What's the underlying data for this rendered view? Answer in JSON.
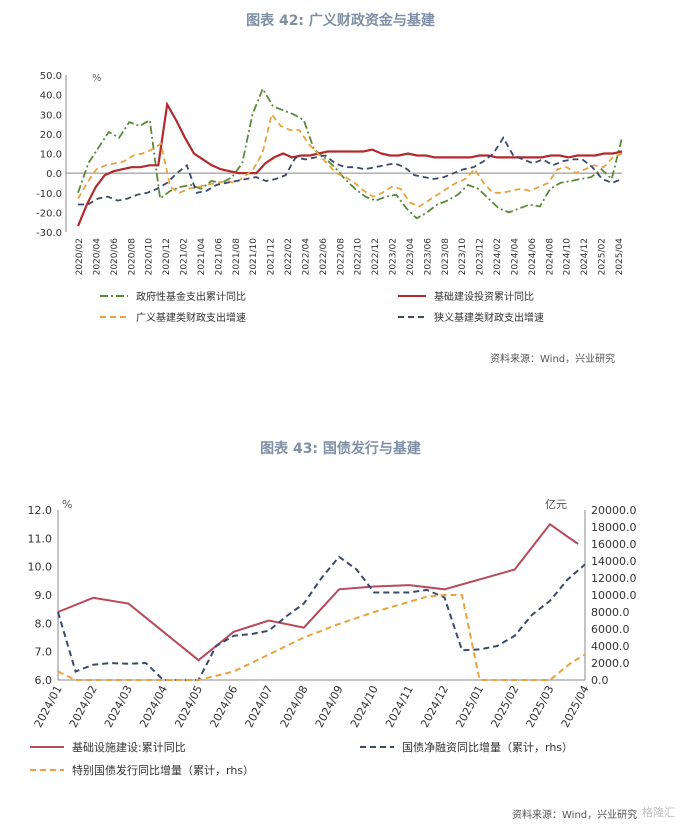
{
  "figures": [
    {
      "title": "图表 42: 广义财政资金与基建",
      "source": "资料来源：Wind，兴业研究"
    },
    {
      "title": "图表 43: 国债发行与基建",
      "source": "资料来源：Wind，兴业研究"
    }
  ],
  "watermark": "格隆汇",
  "chart_data": [
    {
      "type": "line",
      "title": "图表 42: 广义财政资金与基建",
      "ylabel": "%",
      "ylim": [
        -30,
        50
      ],
      "yticks": [
        "50.0",
        "40.0",
        "30.0",
        "20.0",
        "10.0",
        "0.0",
        "-10.0",
        "-20.0",
        "-30.0"
      ],
      "x_labels": [
        "2020/02",
        "2020/04",
        "2020/06",
        "2020/08",
        "2020/10",
        "2020/12",
        "2021/02",
        "2021/04",
        "2021/06",
        "2021/08",
        "2021/10",
        "2021/12",
        "2022/02",
        "2022/04",
        "2022/06",
        "2022/08",
        "2022/10",
        "2022/12",
        "2023/02",
        "2023/04",
        "2023/06",
        "2023/08",
        "2023/10",
        "2023/12",
        "2024/02",
        "2024/04",
        "2024/06",
        "2024/08",
        "2024/10",
        "2024/12",
        "2025/02",
        "2025/04"
      ],
      "legend_position": "bottom",
      "series": [
        {
          "name": "政府性基金支出累计同比",
          "color": "#5b8a3a",
          "dash": "dashdot",
          "values": [
            -10,
            5,
            13,
            21,
            18,
            26,
            24,
            27,
            -13,
            -9,
            -7,
            -6,
            -8,
            -4,
            -5,
            -2,
            5,
            30,
            43,
            34,
            32,
            30,
            27,
            12,
            8,
            3,
            -3,
            -8,
            -12,
            -14,
            -12,
            -11,
            -18,
            -23,
            -20,
            -16,
            -14,
            -11,
            -6,
            -8,
            -13,
            -18,
            -20,
            -18,
            -16,
            -17,
            -8,
            -5,
            -4,
            -3,
            -2,
            2,
            -3,
            18
          ]
        },
        {
          "name": "基础建设投资累计同比",
          "color": "#b22a2e",
          "dash": "solid",
          "values": [
            -27,
            -16,
            -7,
            -1,
            1,
            2,
            3,
            3,
            4,
            4,
            35,
            27,
            18,
            10,
            7,
            4,
            2,
            1,
            0,
            0,
            0,
            5,
            8,
            10,
            8,
            9,
            9,
            10,
            11,
            11,
            11,
            11,
            11,
            12,
            10,
            9,
            9,
            10,
            9,
            9,
            8,
            8,
            8,
            8,
            8,
            9,
            9,
            8,
            8,
            8,
            8,
            8,
            8,
            9,
            9,
            8,
            9,
            9,
            9,
            10,
            10,
            11
          ]
        },
        {
          "name": "广义基建类财政支出增速",
          "color": "#e8a33d",
          "dash": "dash",
          "values": [
            -13,
            -5,
            2,
            4,
            5,
            6,
            9,
            10,
            12,
            15,
            -7,
            -10,
            -8,
            -7,
            -6,
            -5,
            -4,
            -5,
            -2,
            2,
            10,
            30,
            24,
            22,
            22,
            15,
            10,
            5,
            0,
            -2,
            -5,
            -9,
            -12,
            -10,
            -7,
            -8,
            -15,
            -17,
            -14,
            -11,
            -8,
            -5,
            -3,
            2,
            -5,
            -10,
            -10,
            -9,
            -8,
            -9,
            -7,
            -5,
            2,
            3,
            0,
            2,
            4,
            3,
            8,
            10
          ]
        },
        {
          "name": "狭义基建类财政支出增速",
          "color": "#3a4a6b",
          "dash": "dash",
          "values": [
            -16,
            -16,
            -13,
            -12,
            -14,
            -13,
            -11,
            -10,
            -8,
            -5,
            0,
            4,
            -10,
            -9,
            -6,
            -5,
            -4,
            -3,
            -2,
            -4,
            -3,
            -1,
            8,
            7,
            8,
            9,
            5,
            3,
            3,
            2,
            3,
            4,
            5,
            3,
            -1,
            -2,
            -3,
            -2,
            0,
            2,
            3,
            6,
            10,
            18,
            9,
            7,
            5,
            7,
            4,
            6,
            7,
            7,
            3,
            -3,
            -5,
            -3
          ]
        }
      ]
    },
    {
      "type": "line",
      "title": "图表 43: 国债发行与基建",
      "ylabel": "%",
      "ylabel_right": "亿元",
      "ylim": [
        6.0,
        12.0
      ],
      "ylim_right": [
        0,
        20000
      ],
      "yticks": [
        "12.0",
        "11.0",
        "10.0",
        "9.0",
        "8.0",
        "7.0",
        "6.0"
      ],
      "yticks_right": [
        "20000.0",
        "18000.0",
        "16000.0",
        "14000.0",
        "12000.0",
        "10000.0",
        "8000.0",
        "6000.0",
        "4000.0",
        "2000.0",
        "0.0"
      ],
      "x_labels": [
        "2024/01",
        "2024/02",
        "2024/03",
        "2024/04",
        "2024/05",
        "2024/06",
        "2024/07",
        "2024/08",
        "2024/09",
        "2024/10",
        "2024/11",
        "2024/12",
        "2025/01",
        "2025/02",
        "2025/03",
        "2025/04"
      ],
      "legend_position": "bottom",
      "series": [
        {
          "name": "基础设施建设:累计同比",
          "color": "#b94a5a",
          "dash": "solid",
          "axis": "left",
          "x": [
            0,
            1,
            2,
            3,
            4,
            5,
            6,
            7,
            8,
            9,
            10,
            11,
            13,
            14,
            14.8
          ],
          "values": [
            8.4,
            8.9,
            8.7,
            7.7,
            6.7,
            7.7,
            8.1,
            7.85,
            9.2,
            9.3,
            9.35,
            9.2,
            9.9,
            11.5,
            10.8
          ]
        },
        {
          "name": "国债净融资同比增量（累计，rhs）",
          "color": "#3a4a6b",
          "dash": "dash",
          "axis": "right",
          "x": [
            0,
            0.5,
            1,
            1.5,
            2,
            2.5,
            3,
            3.5,
            4,
            4.5,
            5,
            5.5,
            6,
            6.5,
            7,
            7.5,
            8,
            8.5,
            9,
            9.5,
            10,
            10.5,
            11,
            11.5,
            12,
            12.5,
            13,
            13.5,
            14,
            14.5,
            15
          ],
          "values": [
            8000,
            1000,
            1800,
            2000,
            1900,
            2000,
            0,
            0,
            -200,
            4000,
            5200,
            5400,
            5800,
            7500,
            9000,
            12000,
            14500,
            13000,
            10300,
            10300,
            10300,
            10600,
            9700,
            3500,
            3600,
            4000,
            5200,
            7700,
            9300,
            11800,
            13600
          ]
        },
        {
          "name": "特别国债发行同比增量（累计，rhs）",
          "color": "#e8a33d",
          "dash": "dash",
          "axis": "right",
          "x": [
            0,
            0.5,
            1,
            2,
            3,
            4,
            5,
            6,
            7,
            8,
            9,
            10,
            10.5,
            11,
            11.5,
            12,
            12.5,
            13,
            14,
            14.6,
            15
          ],
          "values": [
            1000,
            0,
            0,
            0,
            0,
            0,
            1000,
            3000,
            5000,
            6600,
            8000,
            9200,
            9800,
            10000,
            10000,
            0,
            0,
            0,
            0,
            2000,
            3000
          ]
        }
      ]
    }
  ],
  "legend43": [
    "基础设施建设:累计同比",
    "国债净融资同比增量（累计，rhs）",
    "特别国债发行同比增量（累计，rhs）"
  ],
  "legend42": [
    "政府性基金支出累计同比",
    "基础建设投资累计同比",
    "广义基建类财政支出增速",
    "狭义基建类财政支出增速"
  ]
}
